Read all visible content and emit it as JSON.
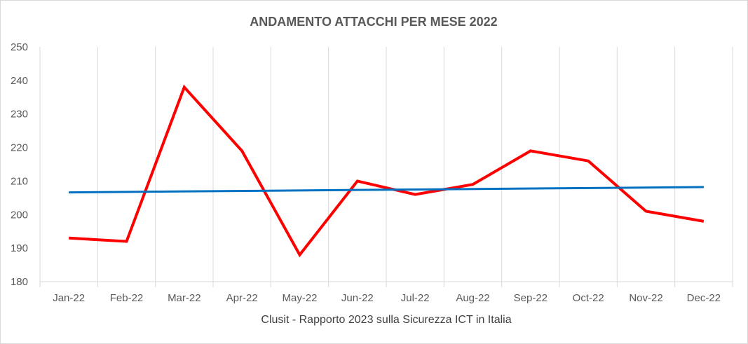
{
  "chart_data": {
    "type": "line",
    "title": "ANDAMENTO ATTACCHI PER MESE 2022",
    "xlabel": "Clusit - Rapporto 2023 sulla Sicurezza ICT in Italia",
    "ylabel": "",
    "categories": [
      "Jan-22",
      "Feb-22",
      "Mar-22",
      "Apr-22",
      "May-22",
      "Jun-22",
      "Jul-22",
      "Aug-22",
      "Sep-22",
      "Oct-22",
      "Nov-22",
      "Dec-22"
    ],
    "series": [
      {
        "values": [
          193,
          192,
          238,
          219,
          188,
          210,
          206,
          209,
          219,
          216,
          201,
          198
        ],
        "color": "#FF0000",
        "trendline": "linear",
        "trendline_color": "#0070C0"
      }
    ],
    "ylim": [
      180,
      250
    ],
    "yticks": [
      180,
      190,
      200,
      210,
      220,
      230,
      240,
      250
    ],
    "grid": "vertical",
    "legend": "none"
  }
}
